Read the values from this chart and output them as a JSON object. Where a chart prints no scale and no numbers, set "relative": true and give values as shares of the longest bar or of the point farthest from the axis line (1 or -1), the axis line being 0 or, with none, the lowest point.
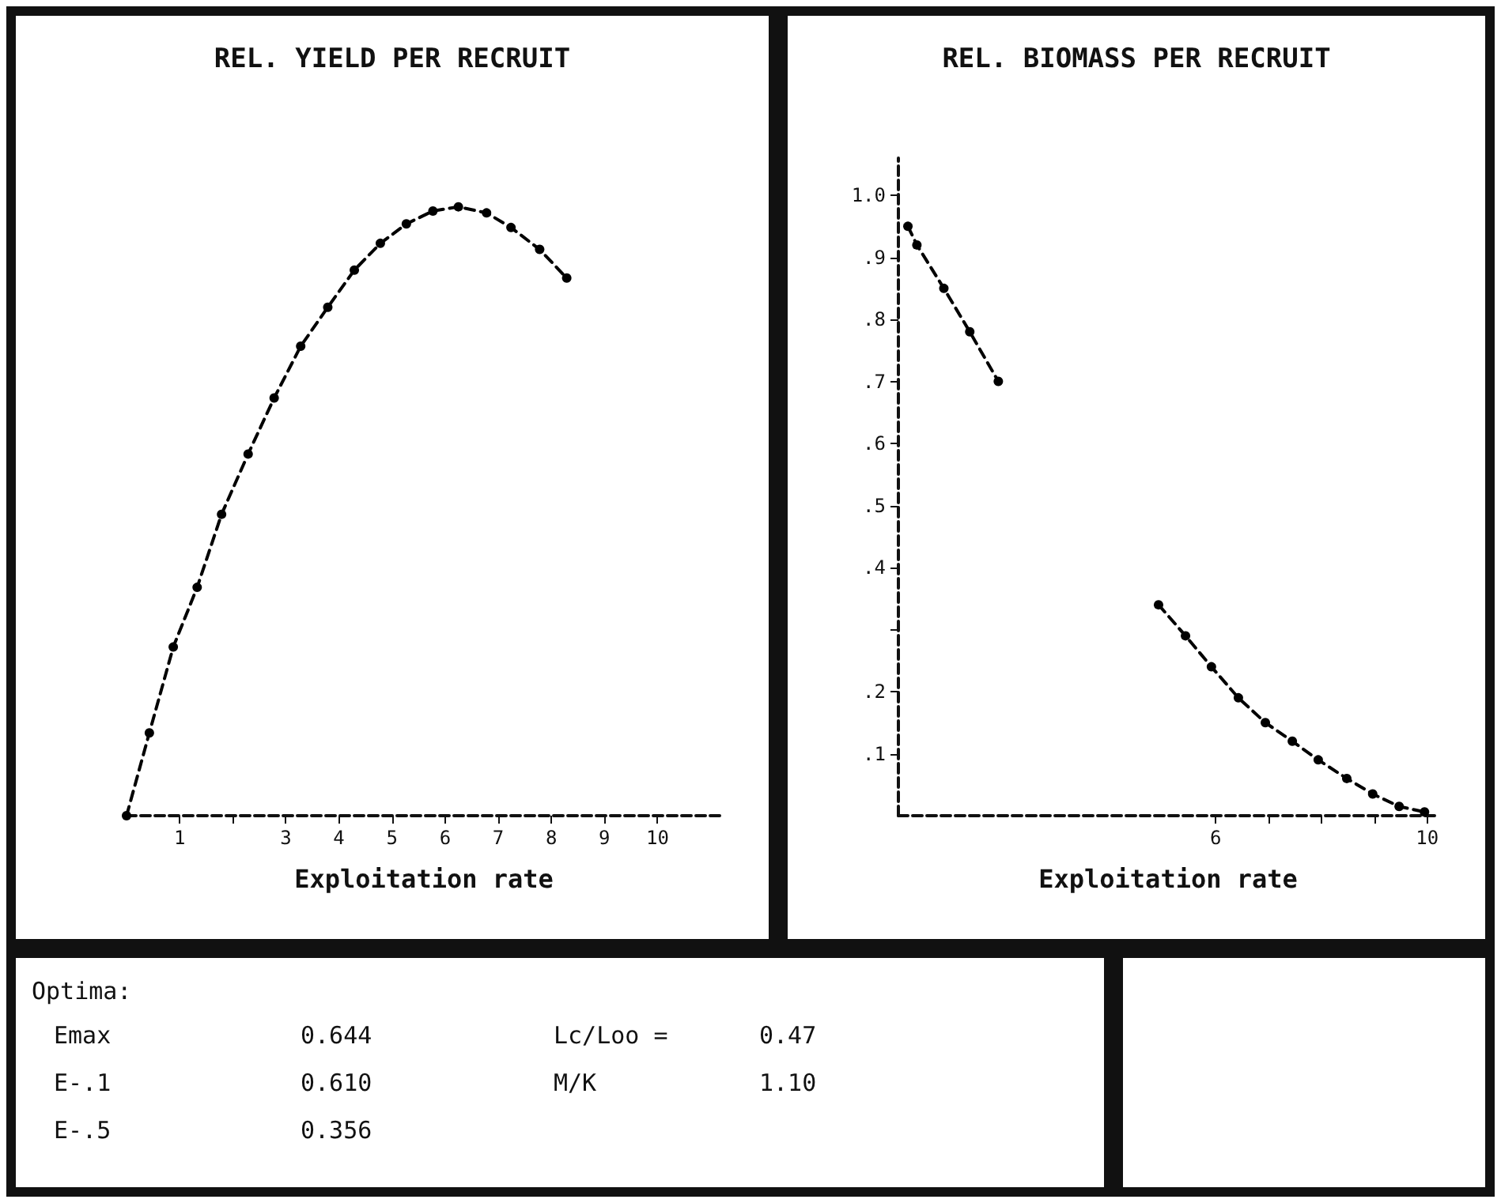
{
  "chart_data": [
    {
      "type": "line",
      "title": "REL. YIELD PER RECRUIT",
      "xlabel": "Exploitation rate",
      "relative": true,
      "marker": "circle",
      "line_style": "dashed",
      "grid": false,
      "legend": false,
      "xlim": [
        0,
        11.2
      ],
      "xticks": [
        1,
        {
          "value": 2,
          "label": null
        },
        3,
        4,
        5,
        6,
        7,
        8,
        9,
        10
      ],
      "series": [
        {
          "color": "#000000",
          "x": [
            0,
            0.43,
            0.88,
            1.33,
            1.79,
            2.29,
            2.78,
            3.28,
            3.79,
            4.29,
            4.78,
            5.27,
            5.77,
            6.25,
            6.78,
            7.24,
            7.78,
            8.29
          ],
          "values": [
            0,
            0.136,
            0.277,
            0.375,
            0.495,
            0.594,
            0.686,
            0.771,
            0.835,
            0.896,
            0.94,
            0.972,
            0.993,
            1,
            0.99,
            0.966,
            0.93,
            0.883
          ]
        }
      ]
    },
    {
      "type": "line",
      "title": "REL. BIOMASS PER RECRUIT",
      "xlabel": "Exploitation rate",
      "marker": "circle",
      "line_style": "dashed",
      "grid": false,
      "legend": false,
      "xlim": [
        0,
        10.2
      ],
      "xticks": [
        6,
        {
          "value": 7,
          "label": null
        },
        {
          "value": 8,
          "label": null
        },
        {
          "value": 9,
          "label": null
        },
        10
      ],
      "ylim": [
        0,
        1.06
      ],
      "yticks": [
        {
          "value": 0.1,
          "label": ".1"
        },
        {
          "value": 0.2,
          "label": ".2"
        },
        {
          "value": 0.3,
          "label": null
        },
        {
          "value": 0.4,
          "label": ".4"
        },
        {
          "value": 0.5,
          "label": ".5"
        },
        {
          "value": 0.6,
          "label": ".6"
        },
        {
          "value": 0.7,
          "label": ".7"
        },
        {
          "value": 0.8,
          "label": ".8"
        },
        {
          "value": 0.9,
          "label": ".9"
        },
        {
          "value": 1.0,
          "label": "1.0"
        }
      ],
      "series": [
        {
          "color": "#000000",
          "x": [
            0.18,
            0.35,
            0.86,
            1.35,
            1.89,
            3.4,
            4.92,
            5.43,
            5.92,
            6.43,
            6.94,
            7.45,
            7.94,
            8.48,
            8.97,
            9.47,
            9.95
          ],
          "values": [
            0.95,
            0.92,
            0.85,
            0.78,
            0.7,
            null,
            0.34,
            0.29,
            0.24,
            0.19,
            0.15,
            0.12,
            0.09,
            0.06,
            0.035,
            0.015,
            0.006
          ]
        }
      ]
    },
    {
      "type": "other",
      "title": "Optima:",
      "annotations": [
        "Emax",
        "0.644",
        "Lc/Loo =",
        "0.47",
        "E-.1",
        "0.610",
        "M/K",
        "1.10",
        "E-.5",
        "0.356"
      ]
    }
  ]
}
